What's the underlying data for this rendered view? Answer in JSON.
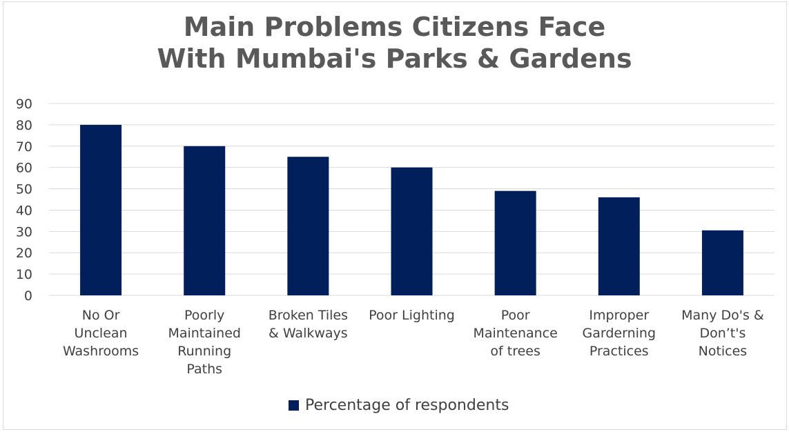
{
  "chart_data": {
    "type": "bar",
    "title_lines": [
      "Main Problems Citizens Face",
      "With Mumbai's Parks & Gardens"
    ],
    "categories": [
      [
        "No Or",
        "Unclean",
        "Washrooms"
      ],
      [
        "Poorly",
        "Maintained",
        "Running",
        "Paths"
      ],
      [
        "Broken Tiles",
        "& Walkways"
      ],
      [
        "Poor Lighting"
      ],
      [
        "Poor",
        "Maintenance",
        "of trees"
      ],
      [
        "Improper",
        "Garderning",
        "Practices"
      ],
      [
        "Many Do's &",
        "Don’t's",
        "Notices"
      ]
    ],
    "series": [
      {
        "name": "Percentage of respondents",
        "values": [
          80,
          70,
          65,
          60,
          49,
          46,
          30.5
        ]
      }
    ],
    "ylim": [
      0,
      90
    ],
    "yticks": [
      "0",
      "10",
      "20",
      "30",
      "40",
      "50",
      "60",
      "70",
      "80",
      "90"
    ],
    "grid": true,
    "legend_position": "bottom",
    "colors": {
      "bar": "#001f5b",
      "grid": "#d9d9d9",
      "text": "#404040",
      "title": "#595959"
    }
  }
}
